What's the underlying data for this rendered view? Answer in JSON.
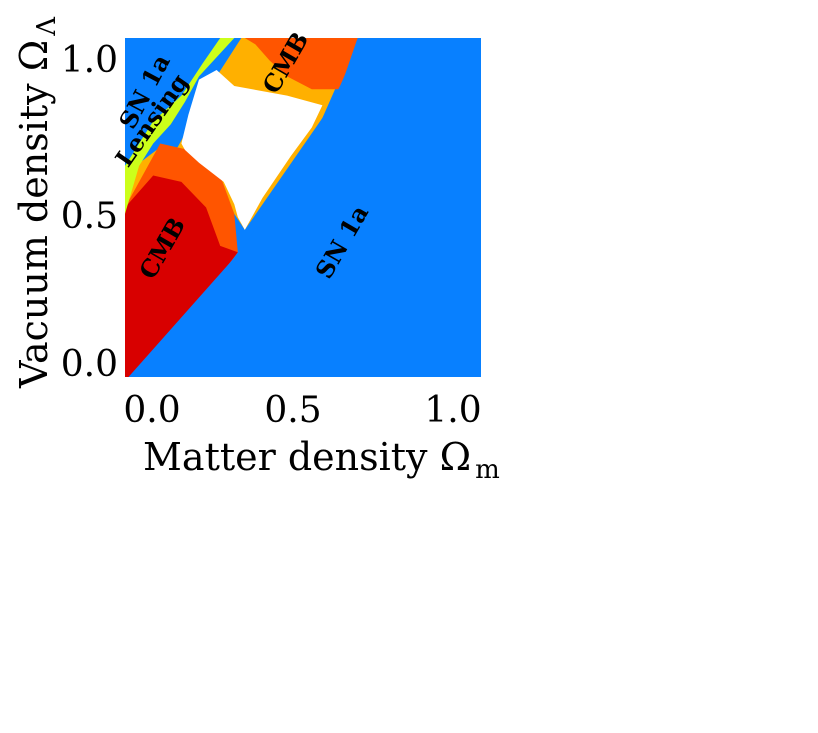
{
  "chart_data": {
    "type": "area",
    "title": "",
    "xlabel": "Matter density Ω",
    "xlabel_sub": "m",
    "ylabel": "Vacuum density Ω",
    "ylabel_sub": "Λ",
    "xlim": [
      -0.01,
      1.0
    ],
    "ylim": [
      -0.01,
      1.05
    ],
    "x_ticks": [
      "0.0",
      "0.5",
      "1.0"
    ],
    "y_ticks": [
      "0.0",
      "0.5",
      "1.0"
    ],
    "grid": false,
    "legend": "none",
    "colors": {
      "sn1a": "#0880ff",
      "lensing": "#ccff1a",
      "cmb_core": "#d80000",
      "cmb_mid": "#ff5500",
      "cmb_outer": "#ffb000",
      "allowed": "#ffffff"
    },
    "regions": [
      {
        "name": "SN 1a",
        "color_key": "sn1a",
        "polygon": [
          [
            -0.01,
            1.05
          ],
          [
            1.0,
            1.05
          ],
          [
            1.0,
            -0.01
          ],
          [
            -0.01,
            -0.01
          ]
        ]
      },
      {
        "name": "CMB outer",
        "color_key": "cmb_outer",
        "polygon": [
          [
            0.32,
            1.05
          ],
          [
            0.65,
            1.05
          ],
          [
            0.55,
            0.8
          ],
          [
            0.33,
            0.45
          ],
          [
            0.3,
            0.5
          ],
          [
            0.25,
            0.62
          ],
          [
            0.17,
            0.7
          ],
          [
            0.08,
            0.7
          ],
          [
            0.02,
            0.65
          ],
          [
            -0.01,
            0.6
          ],
          [
            -0.01,
            0.52
          ],
          [
            0.03,
            0.58
          ],
          [
            0.14,
            0.71
          ],
          [
            0.25,
            0.93
          ]
        ]
      },
      {
        "name": "CMB mid",
        "color_key": "cmb_mid",
        "polygon": [
          [
            0.33,
            1.05
          ],
          [
            0.65,
            1.05
          ],
          [
            0.6,
            0.89
          ],
          [
            0.52,
            0.89
          ],
          [
            0.45,
            0.93
          ],
          [
            0.4,
            0.98
          ],
          [
            0.36,
            1.03
          ]
        ]
      },
      {
        "name": "CMB mid lower",
        "color_key": "cmb_mid",
        "polygon": [
          [
            0.09,
            0.72
          ],
          [
            0.17,
            0.7
          ],
          [
            0.26,
            0.62
          ],
          [
            0.3,
            0.5
          ],
          [
            0.31,
            0.38
          ],
          [
            0.05,
            -0.01
          ],
          [
            -0.01,
            -0.01
          ],
          [
            -0.01,
            0.52
          ]
        ]
      },
      {
        "name": "CMB",
        "color_key": "cmb_core",
        "polygon": [
          [
            -0.01,
            0.52
          ],
          [
            0.07,
            0.62
          ],
          [
            0.15,
            0.6
          ],
          [
            0.22,
            0.52
          ],
          [
            0.26,
            0.4
          ],
          [
            0.31,
            0.38
          ],
          [
            0.04,
            -0.01
          ],
          [
            -0.01,
            -0.01
          ]
        ]
      },
      {
        "name": "Lensing",
        "color_key": "lensing",
        "polygon": [
          [
            0.26,
            1.05
          ],
          [
            0.3,
            1.05
          ],
          [
            0.2,
            0.93
          ],
          [
            0.16,
            0.85
          ],
          [
            0.12,
            0.78
          ],
          [
            0.07,
            0.72
          ],
          [
            0.03,
            0.65
          ],
          [
            -0.01,
            0.5
          ],
          [
            -0.01,
            0.57
          ],
          [
            -0.01,
            0.65
          ],
          [
            0.03,
            0.72
          ],
          [
            0.07,
            0.79
          ],
          [
            0.15,
            0.87
          ],
          [
            0.21,
            0.97
          ]
        ]
      },
      {
        "name": "allowed",
        "color_key": "allowed",
        "polygon": [
          [
            0.2,
            0.92
          ],
          [
            0.25,
            0.95
          ],
          [
            0.3,
            0.9
          ],
          [
            0.45,
            0.87
          ],
          [
            0.55,
            0.84
          ],
          [
            0.52,
            0.77
          ],
          [
            0.46,
            0.68
          ],
          [
            0.38,
            0.55
          ],
          [
            0.33,
            0.45
          ],
          [
            0.31,
            0.49
          ],
          [
            0.3,
            0.53
          ],
          [
            0.27,
            0.6
          ],
          [
            0.2,
            0.66
          ],
          [
            0.16,
            0.7
          ],
          [
            0.15,
            0.72
          ],
          [
            0.17,
            0.81
          ]
        ]
      },
      {
        "name": "SN 1a lower",
        "color_key": "sn1a",
        "polygon": [
          [
            1.0,
            -0.01
          ],
          [
            1.0,
            1.05
          ],
          [
            0.66,
            1.05
          ],
          [
            0.6,
            0.9
          ],
          [
            0.55,
            0.8
          ],
          [
            0.33,
            0.4
          ],
          [
            0.0,
            -0.01
          ]
        ]
      }
    ],
    "labels": [
      {
        "text": "SN 1a",
        "x": 0.05,
        "y": 0.88,
        "angle": -62
      },
      {
        "text": "Lensing",
        "x": 0.07,
        "y": 0.79,
        "angle": -55
      },
      {
        "text": "CMB",
        "x": 0.45,
        "y": 0.97,
        "angle": -60
      },
      {
        "text": "CMB",
        "x": 0.1,
        "y": 0.39,
        "angle": -60
      },
      {
        "text": "SN 1a",
        "x": 0.61,
        "y": 0.41,
        "angle": -60
      }
    ]
  }
}
